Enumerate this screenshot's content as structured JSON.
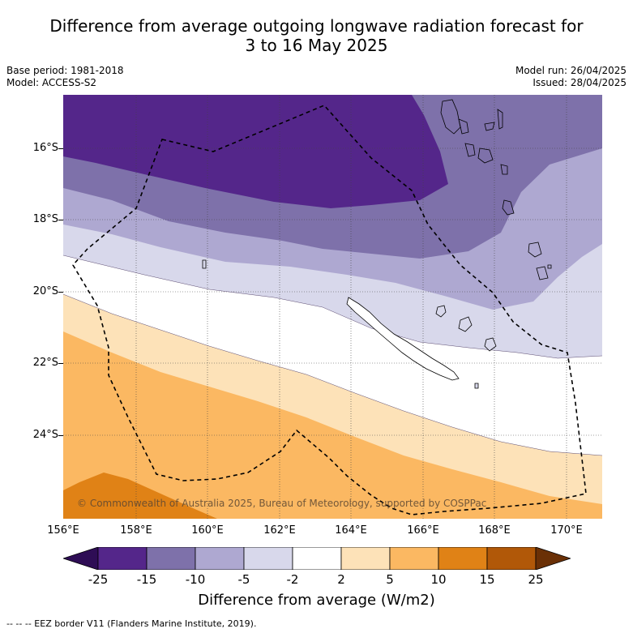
{
  "title_line1": "Difference from average outgoing longwave radiation forecast for",
  "title_line2": "3 to 16 May 2025",
  "meta": {
    "base_period": "Base period: 1981-2018",
    "model": "Model: ACCESS-S2",
    "model_run": "Model run: 26/04/2025",
    "issued": "Issued: 28/04/2025"
  },
  "lat_labels": [
    "16°S",
    "18°S",
    "20°S",
    "22°S",
    "24°S"
  ],
  "lon_labels": [
    "156°E",
    "158°E",
    "160°E",
    "162°E",
    "164°E",
    "166°E",
    "168°E",
    "170°E"
  ],
  "colorbar": {
    "labels": [
      "-25",
      "-15",
      "-10",
      "-5",
      "-2",
      "2",
      "5",
      "10",
      "15",
      "25"
    ],
    "colors": [
      "#2e0d55",
      "#54268a",
      "#7e71aa",
      "#aea8d1",
      "#d8d8eb",
      "#ffffff",
      "#fde2b8",
      "#fbb862",
      "#e08216",
      "#b15808",
      "#6a3006"
    ],
    "title": "Difference from average (W/m2)"
  },
  "copyright": "© Commonwealth of Australia 2025, Bureau of Meteorology, supported by COSPPac",
  "footnote": "-- -- -- EEZ border V11 (Flanders Marine Institute, 2019)."
}
